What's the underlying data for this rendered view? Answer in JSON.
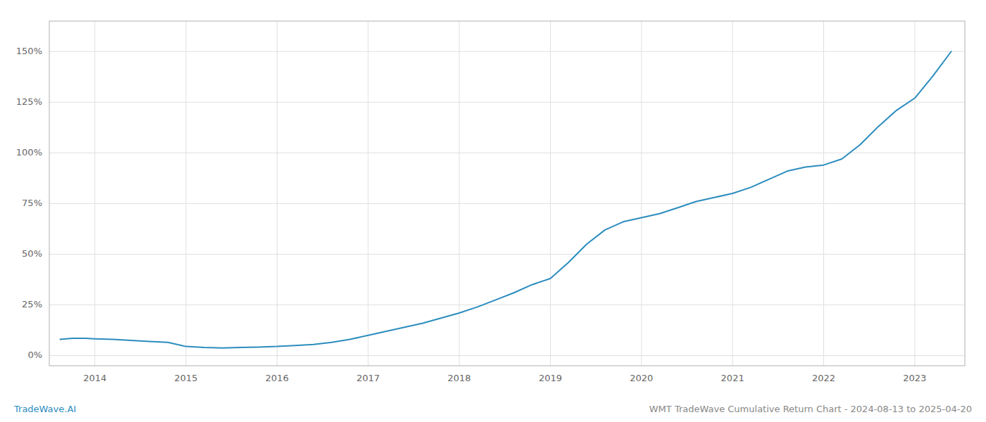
{
  "chart_data": {
    "type": "line",
    "color": "#2b8cbe",
    "grid": true,
    "x": [
      2013.62,
      2013.75,
      2013.9,
      2014.0,
      2014.2,
      2014.4,
      2014.6,
      2014.8,
      2015.0,
      2015.2,
      2015.4,
      2015.6,
      2015.8,
      2016.0,
      2016.2,
      2016.4,
      2016.6,
      2016.8,
      2017.0,
      2017.2,
      2017.4,
      2017.6,
      2017.8,
      2018.0,
      2018.2,
      2018.4,
      2018.6,
      2018.8,
      2019.0,
      2019.2,
      2019.4,
      2019.6,
      2019.8,
      2020.0,
      2020.2,
      2020.4,
      2020.6,
      2020.8,
      2021.0,
      2021.2,
      2021.4,
      2021.6,
      2021.8,
      2022.0,
      2022.2,
      2022.4,
      2022.6,
      2022.8,
      2023.0,
      2023.2,
      2023.4
    ],
    "values": [
      8.0,
      8.5,
      8.5,
      8.3,
      8.0,
      7.5,
      7.0,
      6.5,
      4.5,
      4.0,
      3.8,
      4.0,
      4.2,
      4.5,
      5.0,
      5.5,
      6.5,
      8.0,
      10.0,
      12.0,
      14.0,
      16.0,
      18.5,
      21.0,
      24.0,
      27.5,
      31.0,
      35.0,
      38.0,
      46.0,
      55.0,
      62.0,
      66.0,
      68.0,
      70.0,
      73.0,
      76.0,
      78.0,
      80.0,
      83.0,
      87.0,
      91.0,
      93.0,
      94.0,
      97.0,
      104.0,
      113.0,
      121.0,
      127.0,
      138.0,
      150.0
    ],
    "xlim": [
      2013.5,
      2023.55
    ],
    "xticks": [
      2014,
      2015,
      2016,
      2017,
      2018,
      2019,
      2020,
      2021,
      2022,
      2023
    ],
    "ylim": [
      -5,
      165
    ],
    "yticks": [
      {
        "value": 0,
        "label": "0%"
      },
      {
        "value": 25,
        "label": "25%"
      },
      {
        "value": 50,
        "label": "50%"
      },
      {
        "value": 75,
        "label": "75%"
      },
      {
        "value": 100,
        "label": "100%"
      },
      {
        "value": 125,
        "label": "125%"
      },
      {
        "value": 150,
        "label": "150%"
      }
    ],
    "annotations": [
      {
        "text": "TradeWave.AI",
        "color": "#2b8cbe"
      },
      {
        "text": "WMT TradeWave Cumulative Return Chart - 2024-08-13 to 2025-04-20",
        "color": "#888888"
      }
    ]
  }
}
